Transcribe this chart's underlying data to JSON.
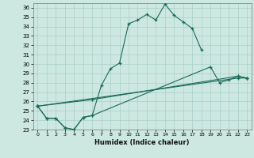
{
  "xlabel": "Humidex (Indice chaleur)",
  "ylabel": "",
  "xlim": [
    -0.5,
    23.5
  ],
  "ylim": [
    23,
    36.5
  ],
  "yticks": [
    23,
    24,
    25,
    26,
    27,
    28,
    29,
    30,
    31,
    32,
    33,
    34,
    35,
    36
  ],
  "xticks": [
    0,
    1,
    2,
    3,
    4,
    5,
    6,
    7,
    8,
    9,
    10,
    11,
    12,
    13,
    14,
    15,
    16,
    17,
    18,
    19,
    20,
    21,
    22,
    23
  ],
  "bg_color": "#cce8e0",
  "line_color": "#1a6b5a",
  "grid_color": "#aacfc8",
  "lines": [
    {
      "x": [
        0,
        1,
        2,
        3,
        4,
        5,
        6,
        7,
        8,
        9,
        10,
        11,
        12,
        13,
        14,
        15,
        16,
        17,
        18
      ],
      "y": [
        25.5,
        24.2,
        24.2,
        23.2,
        23.0,
        24.3,
        24.5,
        27.7,
        29.5,
        30.1,
        34.3,
        34.7,
        35.3,
        34.7,
        36.4,
        35.2,
        34.5,
        33.8,
        31.5
      ]
    },
    {
      "x": [
        0,
        1,
        2,
        3,
        4,
        5,
        6,
        19,
        20,
        21,
        22,
        23
      ],
      "y": [
        25.5,
        24.2,
        24.2,
        23.2,
        23.0,
        24.3,
        24.5,
        29.7,
        28.0,
        28.3,
        28.7,
        28.5
      ]
    },
    {
      "x": [
        0,
        6,
        22,
        23
      ],
      "y": [
        25.5,
        26.2,
        28.7,
        28.5
      ]
    },
    {
      "x": [
        0,
        22,
        23
      ],
      "y": [
        25.5,
        28.5,
        28.5
      ]
    }
  ]
}
